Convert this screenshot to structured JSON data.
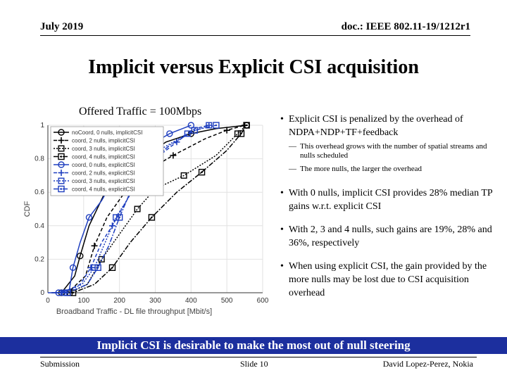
{
  "header": {
    "date": "July 2019",
    "doc": "doc.: IEEE 802.11-19/1212r1"
  },
  "slide_title": "Implicit versus Explicit CSI acquisition",
  "chart_caption": "Offered Traffic = 100Mbps",
  "bullets": [
    {
      "text": "Explicit CSI is penalized by the overhead of NDPA+NDP+TF+feedback",
      "subs": [
        "This overhead grows with the number of spatial streams and nulls scheduled",
        "The more nulls, the larger the overhead"
      ]
    },
    {
      "text": "With 0 nulls, implicit CSI provides 28% median TP gains w.r.t. explicit CSI",
      "subs": []
    },
    {
      "text": "With 2, 3 and 4 nulls, such gains are 19%, 28% and 36%, respectively",
      "subs": []
    },
    {
      "text": "When using explicit CSI, the gain provided by the more nulls may be lost due to CSI acquisition overhead",
      "subs": []
    }
  ],
  "banner": "Implicit CSI is desirable to make the most out of null steering",
  "footer": {
    "left": "Submission",
    "center": "Slide 10",
    "right": "David Lopez-Perez, Nokia"
  },
  "chart_data": {
    "type": "line",
    "xlabel": "Broadband Traffic - DL file throughput [Mbit/s]",
    "ylabel": "CDF",
    "xlim": [
      0,
      600
    ],
    "ylim": [
      0,
      1
    ],
    "xticks": [
      0,
      100,
      200,
      300,
      400,
      500,
      600
    ],
    "yticks": [
      0,
      0.2,
      0.4,
      0.6,
      0.8,
      1
    ],
    "legend_position": "top-left",
    "series": [
      {
        "name": "noCoord, 0 nulls, implicitCSI",
        "color": "#000000",
        "dash": "",
        "marker": "circle",
        "points": [
          [
            10,
            0
          ],
          [
            38,
            0
          ],
          [
            75,
            0.1
          ],
          [
            90,
            0.22
          ],
          [
            115,
            0.4
          ],
          [
            160,
            0.6
          ],
          [
            200,
            0.7
          ],
          [
            260,
            0.8
          ],
          [
            330,
            0.9
          ],
          [
            400,
            0.95
          ],
          [
            470,
            0.98
          ],
          [
            555,
            1
          ]
        ]
      },
      {
        "name": "coord, 2 nulls, implicitCSI",
        "color": "#000000",
        "dash": "5,3",
        "marker": "plus",
        "points": [
          [
            20,
            0
          ],
          [
            55,
            0
          ],
          [
            105,
            0.1
          ],
          [
            130,
            0.28
          ],
          [
            165,
            0.45
          ],
          [
            215,
            0.6
          ],
          [
            270,
            0.72
          ],
          [
            350,
            0.82
          ],
          [
            440,
            0.92
          ],
          [
            500,
            0.97
          ],
          [
            550,
            1
          ]
        ]
      },
      {
        "name": "coord, 3 nulls, implicitCSI",
        "color": "#000000",
        "dash": "2,2",
        "marker": "square",
        "points": [
          [
            25,
            0
          ],
          [
            60,
            0
          ],
          [
            110,
            0.05
          ],
          [
            150,
            0.2
          ],
          [
            200,
            0.35
          ],
          [
            250,
            0.5
          ],
          [
            300,
            0.62
          ],
          [
            380,
            0.7
          ],
          [
            470,
            0.82
          ],
          [
            530,
            0.95
          ],
          [
            555,
            1
          ]
        ]
      },
      {
        "name": "coord, 4 nulls, implicitCSI",
        "color": "#000000",
        "dash": "7,2,2,2",
        "marker": "square-dot",
        "points": [
          [
            35,
            0
          ],
          [
            70,
            0
          ],
          [
            130,
            0.05
          ],
          [
            180,
            0.15
          ],
          [
            230,
            0.3
          ],
          [
            290,
            0.45
          ],
          [
            360,
            0.6
          ],
          [
            430,
            0.72
          ],
          [
            500,
            0.85
          ],
          [
            540,
            0.95
          ],
          [
            555,
            1
          ]
        ]
      },
      {
        "name": "coord, 0 nulls, explicitCSI",
        "color": "#1f3fbf",
        "dash": "",
        "marker": "circle",
        "points": [
          [
            0,
            0
          ],
          [
            30,
            0
          ],
          [
            60,
            0.02
          ],
          [
            70,
            0.15
          ],
          [
            90,
            0.3
          ],
          [
            115,
            0.45
          ],
          [
            150,
            0.55
          ],
          [
            190,
            0.7
          ],
          [
            260,
            0.85
          ],
          [
            340,
            0.95
          ],
          [
            400,
            1
          ]
        ]
      },
      {
        "name": "coord, 2 nulls, explicitCSI",
        "color": "#1f3fbf",
        "dash": "5,3",
        "marker": "plus",
        "points": [
          [
            10,
            0
          ],
          [
            40,
            0
          ],
          [
            90,
            0.05
          ],
          [
            120,
            0.15
          ],
          [
            150,
            0.3
          ],
          [
            180,
            0.4
          ],
          [
            220,
            0.55
          ],
          [
            260,
            0.7
          ],
          [
            300,
            0.8
          ],
          [
            360,
            0.9
          ],
          [
            410,
            0.98
          ],
          [
            450,
            1
          ]
        ]
      },
      {
        "name": "coord, 3 nulls, explicitCSI",
        "color": "#1f3fbf",
        "dash": "2,2",
        "marker": "square",
        "points": [
          [
            15,
            0
          ],
          [
            45,
            0
          ],
          [
            95,
            0.05
          ],
          [
            130,
            0.15
          ],
          [
            160,
            0.3
          ],
          [
            190,
            0.45
          ],
          [
            220,
            0.55
          ],
          [
            260,
            0.7
          ],
          [
            310,
            0.85
          ],
          [
            390,
            0.95
          ],
          [
            450,
            1
          ]
        ]
      },
      {
        "name": "coord, 4 nulls, explicitCSI",
        "color": "#1f3fbf",
        "dash": "7,2,2,2",
        "marker": "square-dot",
        "points": [
          [
            20,
            0
          ],
          [
            55,
            0
          ],
          [
            110,
            0.05
          ],
          [
            140,
            0.15
          ],
          [
            170,
            0.28
          ],
          [
            200,
            0.45
          ],
          [
            230,
            0.6
          ],
          [
            270,
            0.75
          ],
          [
            340,
            0.88
          ],
          [
            410,
            0.97
          ],
          [
            470,
            1
          ]
        ]
      }
    ]
  }
}
